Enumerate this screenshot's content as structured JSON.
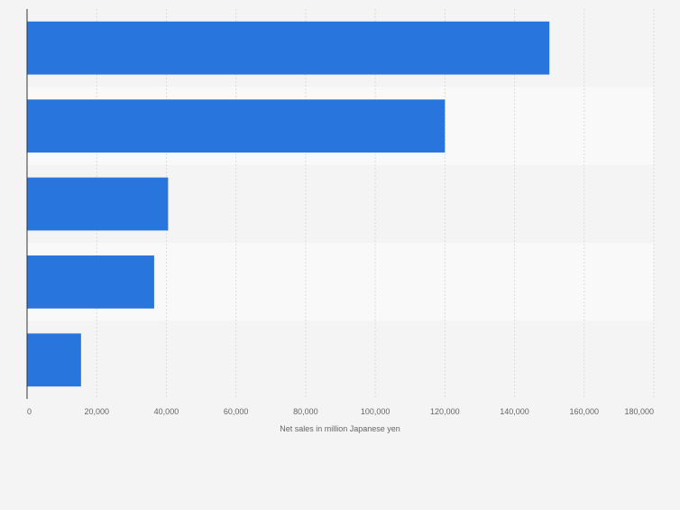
{
  "colors": {
    "bar": "#2876dd",
    "band_dark": "#f4f4f4",
    "band_light": "#f9f9f9",
    "grid": "#dcdcdc",
    "axis": "#333333",
    "tick_text": "#666666"
  },
  "chart_data": {
    "type": "bar",
    "orientation": "horizontal",
    "categories": [
      "",
      "",
      "",
      "",
      ""
    ],
    "values": [
      150000,
      120000,
      40500,
      36500,
      15500
    ],
    "xlabel": "Net sales in million Japanese yen",
    "ylabel": "",
    "xlim": [
      0,
      180000
    ],
    "x_ticks": [
      0,
      20000,
      40000,
      60000,
      80000,
      100000,
      120000,
      140000,
      160000,
      180000
    ],
    "x_tick_labels": [
      "0",
      "20,000",
      "40,000",
      "60,000",
      "80,000",
      "100,000",
      "120,000",
      "140,000",
      "160,000",
      "180,000"
    ],
    "grid": true,
    "legend": "none"
  }
}
